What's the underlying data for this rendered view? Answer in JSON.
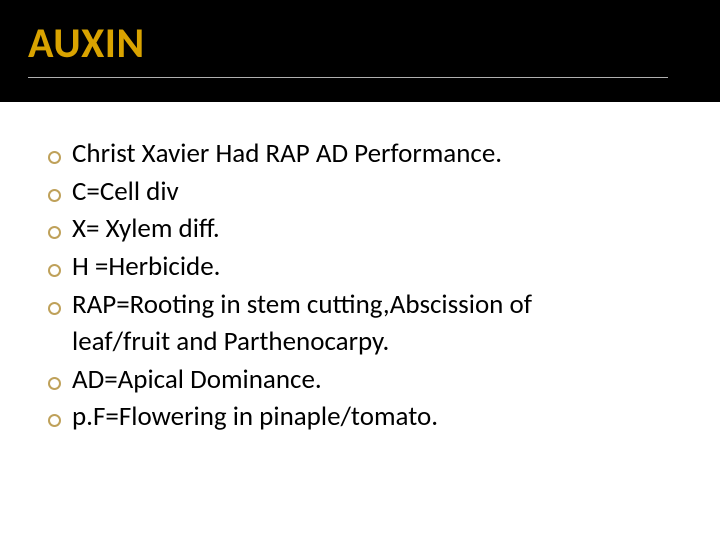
{
  "header": {
    "title": "AUXIN",
    "title_color": "#d9a300",
    "background": "#000000",
    "underline_color": "#b0b0b0"
  },
  "content": {
    "bullet_color": "#bfa15a",
    "text_color": "#000000",
    "font_size": 27,
    "items": [
      {
        "text": "Christ Xavier Had RAP AD Performance."
      },
      {
        "text": "C=Cell div"
      },
      {
        "text": "X= Xylem diff."
      },
      {
        "text": "H =Herbicide."
      },
      {
        "text": "RAP=Rooting in stem cutting,Abscission of",
        "continuation": "leaf/fruit and Parthenocarpy."
      },
      {
        "text": "AD=Apical Dominance."
      },
      {
        "text": "p.F=Flowering in pinaple/tomato."
      }
    ]
  }
}
